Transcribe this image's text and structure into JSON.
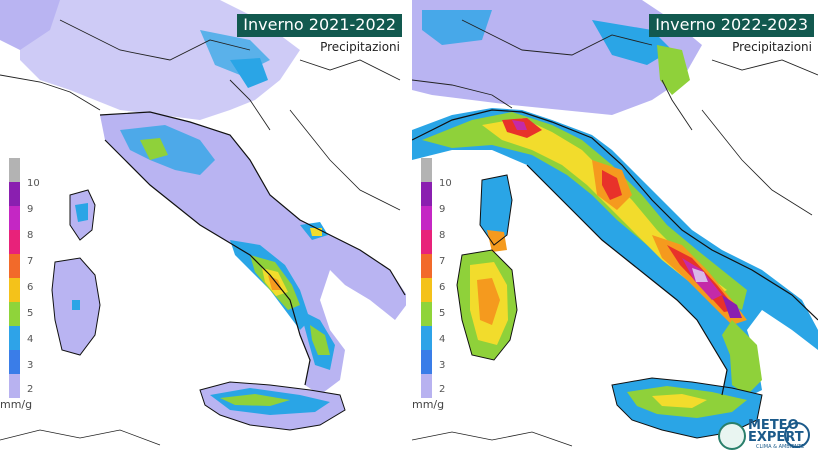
{
  "panels": [
    {
      "title": "Inverno 2021-2022",
      "subtitle": "Precipitazioni"
    },
    {
      "title": "Inverno 2022-2023",
      "subtitle": "Precipitazioni"
    }
  ],
  "legend": {
    "ticks": [
      "10",
      "9",
      "8",
      "7",
      "6",
      "5",
      "4",
      "3",
      "2"
    ],
    "unit": "mm/g",
    "colors": [
      "#b3b3b3",
      "#a3a3a3",
      "#8a1fb0",
      "#c427c4",
      "#e8227a",
      "#f26a2a",
      "#f4a21a",
      "#f2d72c",
      "#8fd43a",
      "#2ea3e8",
      "#b8b2f0"
    ]
  },
  "logos": {
    "brand": "METEO EXPERT",
    "brand_line1": "METEO",
    "brand_line2": "EXPERT",
    "tagline": "CLIMA & AMBIENTE"
  },
  "palette": {
    "lavender": "#b9b4f2",
    "blue": "#2aa5e6",
    "green": "#8fd13a",
    "yellow": "#f2dc2c",
    "orange": "#f59a1e",
    "red": "#e8322a",
    "magenta": "#c42aa8",
    "purple": "#7a2bb0",
    "title_bg": "#12594f"
  }
}
